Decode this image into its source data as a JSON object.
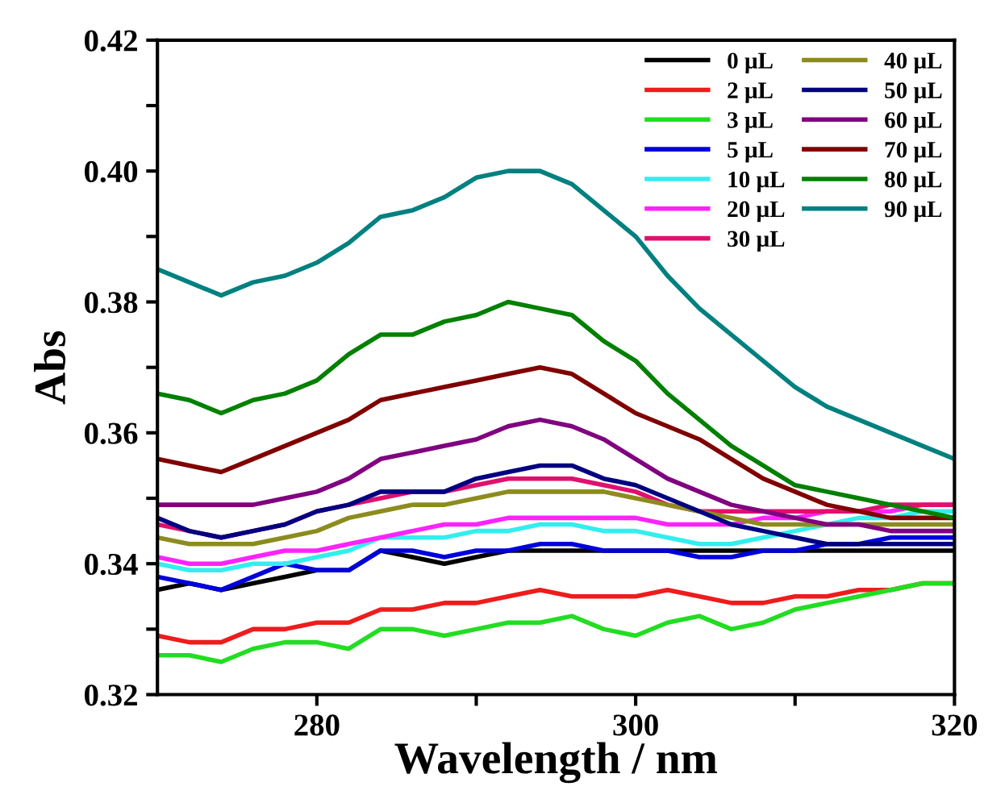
{
  "chart_data": {
    "type": "line",
    "xlabel": "Wavelength / nm",
    "ylabel": "Abs",
    "x": [
      270,
      272,
      274,
      276,
      278,
      280,
      282,
      284,
      286,
      288,
      290,
      292,
      294,
      296,
      298,
      300,
      302,
      304,
      306,
      308,
      310,
      312,
      314,
      316,
      318,
      320
    ],
    "xlim": [
      270,
      320
    ],
    "xticks": [
      280,
      {
        "value": 290,
        "label": null
      },
      300,
      {
        "value": 310,
        "label": null
      },
      320
    ],
    "ylim": [
      0.32,
      0.42
    ],
    "yticks": [
      {
        "value": 0.32,
        "label": "0.32"
      },
      {
        "value": 0.33,
        "label": null
      },
      {
        "value": 0.34,
        "label": "0.34"
      },
      {
        "value": 0.35,
        "label": null
      },
      {
        "value": 0.36,
        "label": "0.36"
      },
      {
        "value": 0.37,
        "label": null
      },
      {
        "value": 0.38,
        "label": "0.38"
      },
      {
        "value": 0.39,
        "label": null
      },
      {
        "value": 0.4,
        "label": "0.40"
      },
      {
        "value": 0.41,
        "label": null
      },
      {
        "value": 0.42,
        "label": "0.42"
      }
    ],
    "grid": false,
    "legend": "top right",
    "marker": "none",
    "line_style": "solid",
    "series": [
      {
        "name": "0 μL",
        "color": "#000000",
        "values": [
          0.336,
          0.337,
          0.336,
          0.337,
          0.338,
          0.339,
          0.339,
          0.342,
          0.341,
          0.34,
          0.341,
          0.342,
          0.342,
          0.342,
          0.342,
          0.342,
          0.342,
          0.342,
          0.342,
          0.342,
          0.342,
          0.342,
          0.342,
          0.342,
          0.342,
          0.342
        ]
      },
      {
        "name": "2 μL",
        "color": "#ee1c1c",
        "values": [
          0.329,
          0.328,
          0.328,
          0.33,
          0.33,
          0.331,
          0.331,
          0.333,
          0.333,
          0.334,
          0.334,
          0.335,
          0.336,
          0.335,
          0.335,
          0.335,
          0.336,
          0.335,
          0.334,
          0.334,
          0.335,
          0.335,
          0.336,
          0.336,
          0.337,
          0.337
        ]
      },
      {
        "name": "3 μL",
        "color": "#22dd22",
        "values": [
          0.326,
          0.326,
          0.325,
          0.327,
          0.328,
          0.328,
          0.327,
          0.33,
          0.33,
          0.329,
          0.33,
          0.331,
          0.331,
          0.332,
          0.33,
          0.329,
          0.331,
          0.332,
          0.33,
          0.331,
          0.333,
          0.334,
          0.335,
          0.336,
          0.337,
          0.337
        ]
      },
      {
        "name": "5 μL",
        "color": "#0000dd",
        "values": [
          0.338,
          0.337,
          0.336,
          0.338,
          0.34,
          0.339,
          0.339,
          0.342,
          0.342,
          0.341,
          0.342,
          0.342,
          0.343,
          0.343,
          0.342,
          0.342,
          0.342,
          0.341,
          0.341,
          0.342,
          0.342,
          0.343,
          0.343,
          0.344,
          0.344,
          0.344
        ]
      },
      {
        "name": "10 μL",
        "color": "#33eeee",
        "values": [
          0.34,
          0.339,
          0.339,
          0.34,
          0.34,
          0.341,
          0.342,
          0.344,
          0.344,
          0.344,
          0.345,
          0.345,
          0.346,
          0.346,
          0.345,
          0.345,
          0.344,
          0.343,
          0.343,
          0.344,
          0.345,
          0.346,
          0.347,
          0.347,
          0.348,
          0.348
        ]
      },
      {
        "name": "20 μL",
        "color": "#ff22ff",
        "values": [
          0.341,
          0.34,
          0.34,
          0.341,
          0.342,
          0.342,
          0.343,
          0.344,
          0.345,
          0.346,
          0.346,
          0.347,
          0.347,
          0.347,
          0.347,
          0.347,
          0.346,
          0.346,
          0.346,
          0.347,
          0.347,
          0.348,
          0.348,
          0.348,
          0.349,
          0.349
        ]
      },
      {
        "name": "30 μL",
        "color": "#e0106e",
        "values": [
          0.346,
          0.345,
          0.344,
          0.345,
          0.346,
          0.348,
          0.349,
          0.35,
          0.351,
          0.351,
          0.352,
          0.353,
          0.353,
          0.353,
          0.352,
          0.351,
          0.349,
          0.348,
          0.348,
          0.348,
          0.348,
          0.348,
          0.348,
          0.349,
          0.349,
          0.349
        ]
      },
      {
        "name": "40 μL",
        "color": "#8c8c1e",
        "values": [
          0.344,
          0.343,
          0.343,
          0.343,
          0.344,
          0.345,
          0.347,
          0.348,
          0.349,
          0.349,
          0.35,
          0.351,
          0.351,
          0.351,
          0.351,
          0.35,
          0.349,
          0.348,
          0.347,
          0.346,
          0.346,
          0.346,
          0.346,
          0.346,
          0.346,
          0.346
        ]
      },
      {
        "name": "50 µL",
        "color": "#000080",
        "values": [
          0.347,
          0.345,
          0.344,
          0.345,
          0.346,
          0.348,
          0.349,
          0.351,
          0.351,
          0.351,
          0.353,
          0.354,
          0.355,
          0.355,
          0.353,
          0.352,
          0.35,
          0.348,
          0.346,
          0.345,
          0.344,
          0.343,
          0.343,
          0.343,
          0.343,
          0.343
        ]
      },
      {
        "name": "60 μL",
        "color": "#800080",
        "values": [
          0.349,
          0.349,
          0.349,
          0.349,
          0.35,
          0.351,
          0.353,
          0.356,
          0.357,
          0.358,
          0.359,
          0.361,
          0.362,
          0.361,
          0.359,
          0.356,
          0.353,
          0.351,
          0.349,
          0.348,
          0.347,
          0.346,
          0.346,
          0.345,
          0.345,
          0.345
        ]
      },
      {
        "name": "70 μL",
        "color": "#800000",
        "values": [
          0.356,
          0.355,
          0.354,
          0.356,
          0.358,
          0.36,
          0.362,
          0.365,
          0.366,
          0.367,
          0.368,
          0.369,
          0.37,
          0.369,
          0.366,
          0.363,
          0.361,
          0.359,
          0.356,
          0.353,
          0.351,
          0.349,
          0.348,
          0.347,
          0.347,
          0.347
        ]
      },
      {
        "name": "80 μL",
        "color": "#008000",
        "values": [
          0.366,
          0.365,
          0.363,
          0.365,
          0.366,
          0.368,
          0.372,
          0.375,
          0.375,
          0.377,
          0.378,
          0.38,
          0.379,
          0.378,
          0.374,
          0.371,
          0.366,
          0.362,
          0.358,
          0.355,
          0.352,
          0.351,
          0.35,
          0.349,
          0.348,
          0.347
        ]
      },
      {
        "name": "90 μL",
        "color": "#008080",
        "values": [
          0.385,
          0.383,
          0.381,
          0.383,
          0.384,
          0.386,
          0.389,
          0.393,
          0.394,
          0.396,
          0.399,
          0.4,
          0.4,
          0.398,
          0.394,
          0.39,
          0.384,
          0.379,
          0.375,
          0.371,
          0.367,
          0.364,
          0.362,
          0.36,
          0.358,
          0.356
        ]
      }
    ]
  }
}
